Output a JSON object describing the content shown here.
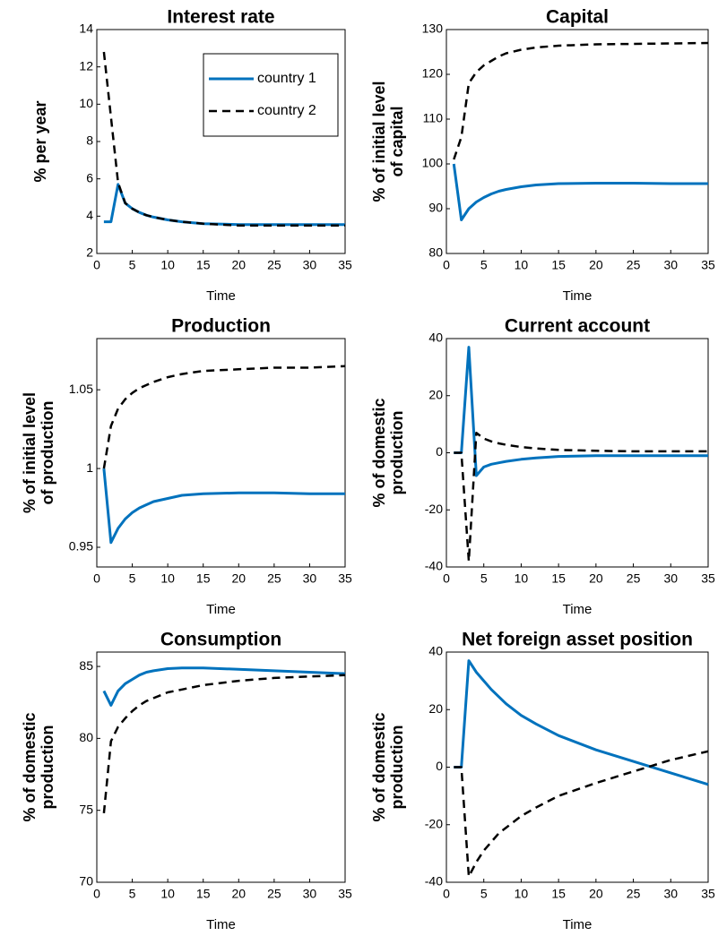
{
  "chart_data": [
    {
      "type": "line",
      "title": "Interest rate",
      "ylabel": [
        "% per year"
      ],
      "xlabel": "Time",
      "x": [
        1,
        2,
        3,
        4,
        5,
        6,
        7,
        8,
        10,
        12,
        15,
        20,
        25,
        30,
        35
      ],
      "xlim": [
        0,
        35
      ],
      "xticks": [
        0,
        5,
        10,
        15,
        20,
        25,
        30,
        35
      ],
      "ylim": [
        2,
        14
      ],
      "yticks": [
        2,
        4,
        6,
        8,
        10,
        12,
        14
      ],
      "legend": "upper right",
      "series": [
        {
          "name": "country 1",
          "color": "#0072bd",
          "dash": false,
          "values": [
            3.7,
            3.7,
            5.7,
            4.7,
            4.4,
            4.2,
            4.05,
            3.95,
            3.8,
            3.7,
            3.6,
            3.55,
            3.55,
            3.55,
            3.55
          ]
        },
        {
          "name": "country 2",
          "color": "#000000",
          "dash": true,
          "values": [
            12.8,
            9.3,
            5.8,
            4.7,
            4.4,
            4.2,
            4.05,
            3.95,
            3.8,
            3.7,
            3.6,
            3.5,
            3.5,
            3.5,
            3.5
          ]
        }
      ]
    },
    {
      "type": "line",
      "title": "Capital",
      "ylabel": [
        "% of initial level",
        "of capital"
      ],
      "xlabel": "Time",
      "x": [
        1,
        2,
        3,
        4,
        5,
        6,
        7,
        8,
        10,
        12,
        15,
        20,
        25,
        30,
        35
      ],
      "xlim": [
        0,
        35
      ],
      "xticks": [
        0,
        5,
        10,
        15,
        20,
        25,
        30,
        35
      ],
      "ylim": [
        80,
        130
      ],
      "yticks": [
        80,
        90,
        100,
        110,
        120,
        130
      ],
      "series": [
        {
          "color": "#0072bd",
          "dash": false,
          "values": [
            100,
            87.5,
            90,
            91.5,
            92.5,
            93.3,
            93.9,
            94.3,
            94.9,
            95.3,
            95.6,
            95.7,
            95.7,
            95.6,
            95.6
          ]
        },
        {
          "color": "#000000",
          "dash": true,
          "values": [
            101,
            106,
            118,
            120.5,
            122,
            123,
            124,
            124.7,
            125.5,
            126,
            126.4,
            126.7,
            126.8,
            126.9,
            127
          ]
        }
      ]
    },
    {
      "type": "line",
      "title": "Production",
      "ylabel": [
        "% of initial level",
        "of production"
      ],
      "xlabel": "Time",
      "x": [
        1,
        2,
        3,
        4,
        5,
        6,
        7,
        8,
        10,
        12,
        15,
        20,
        25,
        30,
        35
      ],
      "xlim": [
        0,
        35
      ],
      "xticks": [
        0,
        5,
        10,
        15,
        20,
        25,
        30,
        35
      ],
      "ylim": [
        0.9375,
        1.0825
      ],
      "yticks": [
        0.95,
        1,
        1.05
      ],
      "series": [
        {
          "color": "#0072bd",
          "dash": false,
          "values": [
            1.0,
            0.953,
            0.962,
            0.968,
            0.972,
            0.975,
            0.977,
            0.979,
            0.981,
            0.983,
            0.984,
            0.9845,
            0.9845,
            0.984,
            0.984
          ]
        },
        {
          "color": "#000000",
          "dash": true,
          "values": [
            1.0,
            1.027,
            1.038,
            1.044,
            1.048,
            1.051,
            1.053,
            1.055,
            1.058,
            1.06,
            1.062,
            1.063,
            1.064,
            1.064,
            1.065
          ]
        }
      ]
    },
    {
      "type": "line",
      "title": "Current account",
      "ylabel": [
        "% of domestic",
        "production"
      ],
      "xlabel": "Time",
      "x": [
        1,
        2,
        3,
        4,
        5,
        6,
        7,
        8,
        10,
        12,
        15,
        20,
        25,
        30,
        35
      ],
      "xlim": [
        0,
        35
      ],
      "xticks": [
        0,
        5,
        10,
        15,
        20,
        25,
        30,
        35
      ],
      "ylim": [
        -40,
        40
      ],
      "yticks": [
        -40,
        -20,
        0,
        20,
        40
      ],
      "series": [
        {
          "color": "#0072bd",
          "dash": false,
          "values": [
            0,
            0,
            37,
            -8,
            -5,
            -4,
            -3.5,
            -3,
            -2.3,
            -1.8,
            -1.3,
            -1,
            -1,
            -1,
            -1
          ]
        },
        {
          "color": "#000000",
          "dash": true,
          "values": [
            0,
            0,
            -38,
            7,
            5,
            4,
            3.3,
            2.8,
            2,
            1.5,
            1,
            0.7,
            0.5,
            0.5,
            0.5
          ]
        }
      ]
    },
    {
      "type": "line",
      "title": "Consumption",
      "ylabel": [
        "% of domestic",
        "production"
      ],
      "xlabel": "Time",
      "x": [
        1,
        2,
        3,
        4,
        5,
        6,
        7,
        8,
        10,
        12,
        15,
        20,
        25,
        30,
        35
      ],
      "xlim": [
        0,
        35
      ],
      "xticks": [
        0,
        5,
        10,
        15,
        20,
        25,
        30,
        35
      ],
      "ylim": [
        70,
        86
      ],
      "yticks": [
        70,
        75,
        80,
        85
      ],
      "series": [
        {
          "color": "#0072bd",
          "dash": false,
          "values": [
            83.3,
            82.3,
            83.3,
            83.8,
            84.1,
            84.4,
            84.6,
            84.7,
            84.85,
            84.9,
            84.9,
            84.8,
            84.7,
            84.6,
            84.5
          ]
        },
        {
          "color": "#000000",
          "dash": true,
          "values": [
            74.8,
            79.8,
            80.8,
            81.4,
            81.9,
            82.3,
            82.6,
            82.8,
            83.2,
            83.4,
            83.7,
            84,
            84.2,
            84.3,
            84.4
          ]
        }
      ]
    },
    {
      "type": "line",
      "title": "Net foreign asset position",
      "ylabel": [
        "% of domestic",
        "production"
      ],
      "xlabel": "Time",
      "x": [
        1,
        2,
        3,
        4,
        5,
        6,
        7,
        8,
        10,
        12,
        15,
        20,
        25,
        30,
        35
      ],
      "xlim": [
        0,
        35
      ],
      "xticks": [
        0,
        5,
        10,
        15,
        20,
        25,
        30,
        35
      ],
      "ylim": [
        -40,
        40
      ],
      "yticks": [
        -40,
        -20,
        0,
        20,
        40
      ],
      "series": [
        {
          "color": "#0072bd",
          "dash": false,
          "values": [
            0,
            0,
            37,
            33,
            30,
            27,
            24.5,
            22,
            18,
            15,
            11,
            6,
            2,
            -2,
            -6
          ]
        },
        {
          "color": "#000000",
          "dash": true,
          "values": [
            0,
            0,
            -38,
            -33,
            -29,
            -26,
            -23,
            -21,
            -17,
            -14,
            -10,
            -5.5,
            -1.5,
            2.5,
            5.5
          ]
        }
      ]
    }
  ]
}
